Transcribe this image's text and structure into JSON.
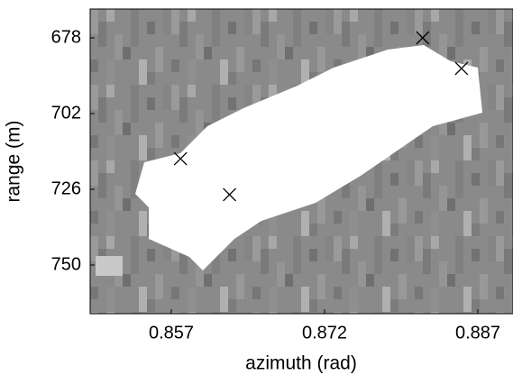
{
  "chart_data": {
    "type": "scatter",
    "x_label": "azimuth (rad)",
    "y_label": "range (m)",
    "x": [
      0.8816,
      0.8854,
      0.8579,
      0.8627
    ],
    "values": [
      678,
      687.7,
      716.3,
      727.7
    ],
    "marker": "x",
    "color": "#000000",
    "xlim": [
      0.84906,
      0.89044
    ],
    "xticks": [
      0.857,
      0.872,
      0.887
    ],
    "ylim": [
      765.43,
      668.86
    ],
    "yticks": [
      678,
      702,
      726,
      750
    ]
  }
}
